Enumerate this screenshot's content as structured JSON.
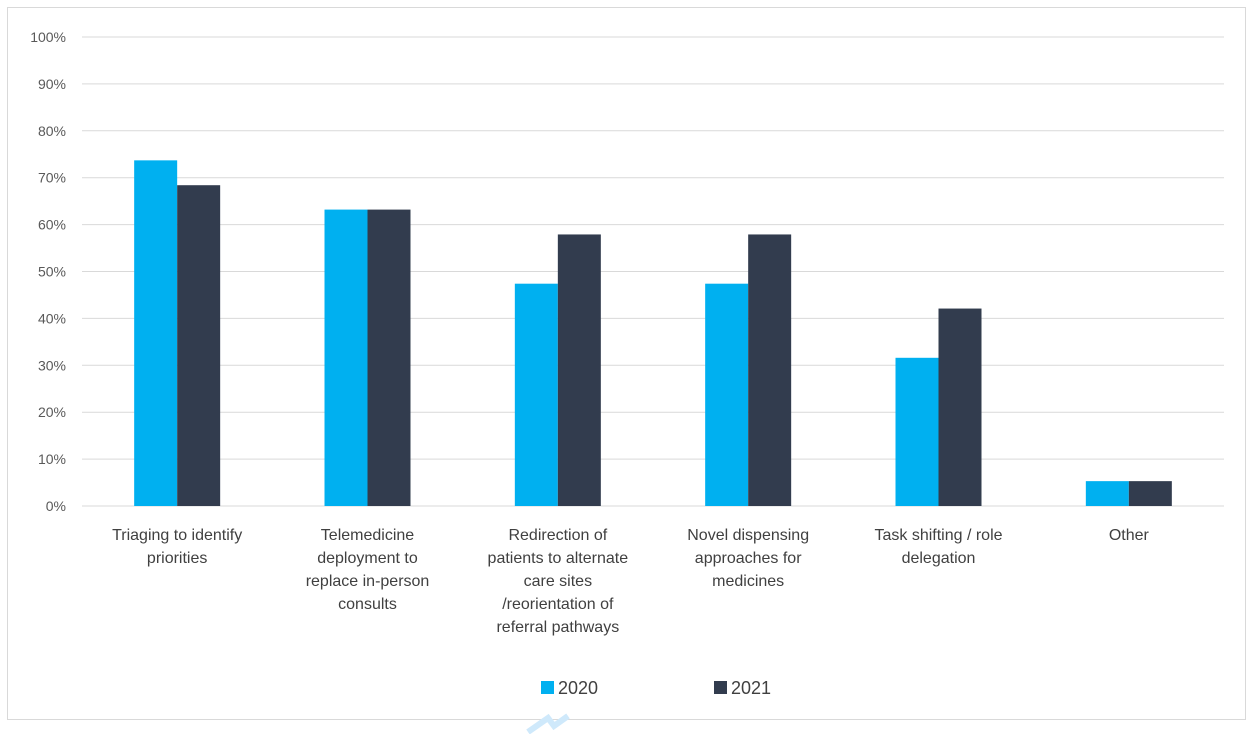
{
  "colors": {
    "s2020": "#00b0f0",
    "s2021": "#323c4e",
    "grid": "#d9d9d9",
    "text": "#404040"
  },
  "chart_data": {
    "type": "bar",
    "title": "",
    "xlabel": "",
    "ylabel": "",
    "ylim": [
      0,
      100
    ],
    "yticks": [
      "0%",
      "10%",
      "20%",
      "30%",
      "40%",
      "50%",
      "60%",
      "70%",
      "80%",
      "90%",
      "100%"
    ],
    "categories": [
      [
        "Triaging to identify",
        "priorities"
      ],
      [
        "Telemedicine",
        "deployment to",
        "replace in-person",
        "consults"
      ],
      [
        "Redirection of",
        "patients to alternate",
        "care sites",
        "/reorientation of",
        "referral pathways"
      ],
      [
        "Novel dispensing",
        "approaches for",
        "medicines"
      ],
      [
        "Task shifting / role",
        "delegation"
      ],
      [
        "Other"
      ]
    ],
    "series": [
      {
        "name": "2020",
        "values": [
          73.7,
          63.2,
          47.4,
          47.4,
          31.6,
          5.3
        ]
      },
      {
        "name": "2021",
        "values": [
          68.4,
          63.2,
          57.9,
          57.9,
          42.1,
          5.3
        ]
      }
    ],
    "grid": true,
    "legend": "bottom-center"
  }
}
